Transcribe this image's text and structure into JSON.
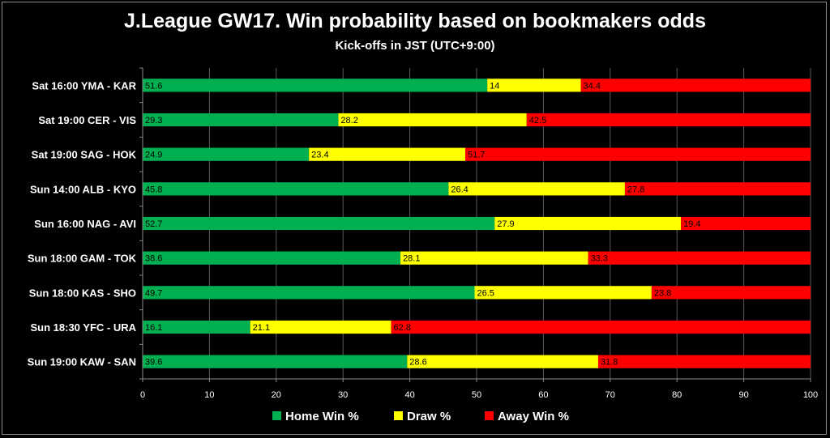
{
  "chart_data": {
    "type": "bar",
    "orientation": "horizontal",
    "stacked": true,
    "title": "J.League GW17. Win probability based on bookmakers odds",
    "subtitle": "Kick-offs in JST (UTC+9:00)",
    "categories": [
      "Sat 16:00 YMA - KAR",
      "Sat 19:00 CER - VIS",
      "Sat 19:00 SAG - HOK",
      "Sun 14:00 ALB - KYO",
      "Sun 16:00 NAG - AVI",
      "Sun 18:00 GAM - TOK",
      "Sun 18:00 KAS - SHO",
      "Sun 18:30 YFC - URA",
      "Sun 19:00 KAW - SAN"
    ],
    "series": [
      {
        "name": "Home Win %",
        "color": "#00b050",
        "values": [
          51.6,
          29.3,
          24.9,
          45.8,
          52.7,
          38.6,
          49.7,
          16.1,
          39.6
        ]
      },
      {
        "name": "Draw %",
        "color": "#ffff00",
        "values": [
          14,
          28.2,
          23.4,
          26.4,
          27.9,
          28.1,
          26.5,
          21.1,
          28.6
        ]
      },
      {
        "name": "Away Win %",
        "color": "#ff0000",
        "values": [
          34.4,
          42.5,
          51.7,
          27.8,
          19.4,
          33.3,
          23.8,
          62.8,
          31.8
        ]
      }
    ],
    "xlim": [
      0,
      100
    ],
    "xticks": [
      0,
      10,
      20,
      30,
      40,
      50,
      60,
      70,
      80,
      90,
      100
    ],
    "grid": true,
    "legend": "bottom"
  }
}
